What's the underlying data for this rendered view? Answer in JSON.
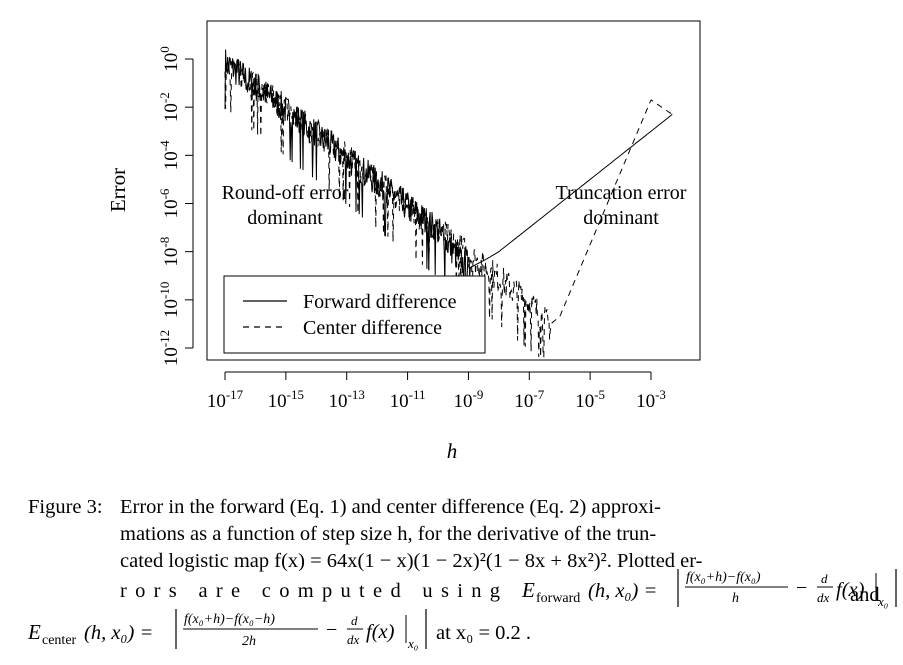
{
  "chart_data": {
    "type": "line",
    "title": "",
    "xlabel": "h",
    "ylabel": "Error",
    "x_scale": "log10",
    "y_scale": "log10",
    "xlim": [
      1e-17,
      0.01
    ],
    "ylim": [
      1e-12,
      2
    ],
    "x_ticks": [
      1e-17,
      1e-15,
      1e-13,
      1e-11,
      1e-09,
      1e-07,
      1e-05,
      0.001
    ],
    "x_tick_labels": [
      {
        "base": "10",
        "exp": "-17"
      },
      {
        "base": "10",
        "exp": "-15"
      },
      {
        "base": "10",
        "exp": "-13"
      },
      {
        "base": "10",
        "exp": "-11"
      },
      {
        "base": "10",
        "exp": "-9"
      },
      {
        "base": "10",
        "exp": "-7"
      },
      {
        "base": "10",
        "exp": "-5"
      },
      {
        "base": "10",
        "exp": "-3"
      }
    ],
    "y_ticks": [
      1e-12,
      1e-10,
      1e-08,
      1e-06,
      0.0001,
      0.01,
      1
    ],
    "y_tick_labels": [
      {
        "base": "10",
        "exp": "-12"
      },
      {
        "base": "10",
        "exp": "-10"
      },
      {
        "base": "10",
        "exp": "-8"
      },
      {
        "base": "10",
        "exp": "-6"
      },
      {
        "base": "10",
        "exp": "-4"
      },
      {
        "base": "10",
        "exp": "-2"
      },
      {
        "base": "10",
        "exp": "0"
      }
    ],
    "grid": false,
    "legend_position": "bottom-left",
    "series": [
      {
        "name": "Forward difference",
        "line_style": "solid",
        "x": [
          1e-17,
          1e-16,
          1e-15,
          1e-14,
          1e-13,
          1e-12,
          1e-11,
          1e-10,
          1e-09,
          4e-09,
          1e-08,
          1e-07,
          1e-06,
          1e-05,
          0.0001,
          0.001,
          0.005
        ],
        "y": [
          1,
          0.1,
          0.01,
          0.001,
          0.0001,
          1e-05,
          1e-06,
          1e-07,
          2e-09,
          5e-09,
          1e-08,
          1e-07,
          1e-06,
          1e-05,
          0.0001,
          0.001,
          0.005
        ]
      },
      {
        "name": "Center difference",
        "line_style": "dashed",
        "x": [
          1e-17,
          1e-16,
          1e-15,
          1e-14,
          1e-13,
          1e-12,
          1e-11,
          1e-10,
          1e-09,
          1e-08,
          1e-07,
          5e-07,
          1e-06,
          1e-05,
          0.0001,
          0.001,
          0.005
        ],
        "y": [
          1,
          0.1,
          0.01,
          0.001,
          0.0001,
          1e-05,
          1e-06,
          1e-07,
          1e-08,
          1e-09,
          1e-10,
          1e-11,
          2e-11,
          2e-08,
          2e-05,
          0.02,
          0.005
        ]
      }
    ],
    "annotations": [
      {
        "lines": [
          "Round-off error",
          "dominant"
        ]
      },
      {
        "lines": [
          "Truncation error",
          "dominant"
        ]
      }
    ]
  },
  "caption": {
    "label": "Figure 3:",
    "line1": "Error in the forward (Eq. 1) and center difference (Eq. 2) approxi-",
    "line2": "mations as a function of step size h, for the derivative of the trun-",
    "line3": "cated logistic map f(x) = 64x(1 − x)(1 − 2x)²(1 − 8x + 8x²)².    Plotted er-",
    "line4_pre": "rors are computed using",
    "forward_symbol": "E",
    "forward_sub": "forward",
    "forward_args": "(h, x₀) =",
    "forward_num": "f(x₀+h)−f(x₀)",
    "forward_den": "h",
    "deriv_num": "d",
    "deriv_den": "dx",
    "deriv_body": "f(x)",
    "eval_sub": "x₀",
    "and_word": "and",
    "center_symbol": "E",
    "center_sub": "center",
    "center_args": "(h, x₀) =",
    "center_num": "f(x₀+h)−f(x₀−h)",
    "center_den": "2h",
    "tail": "at x₀ = 0.2 ."
  }
}
